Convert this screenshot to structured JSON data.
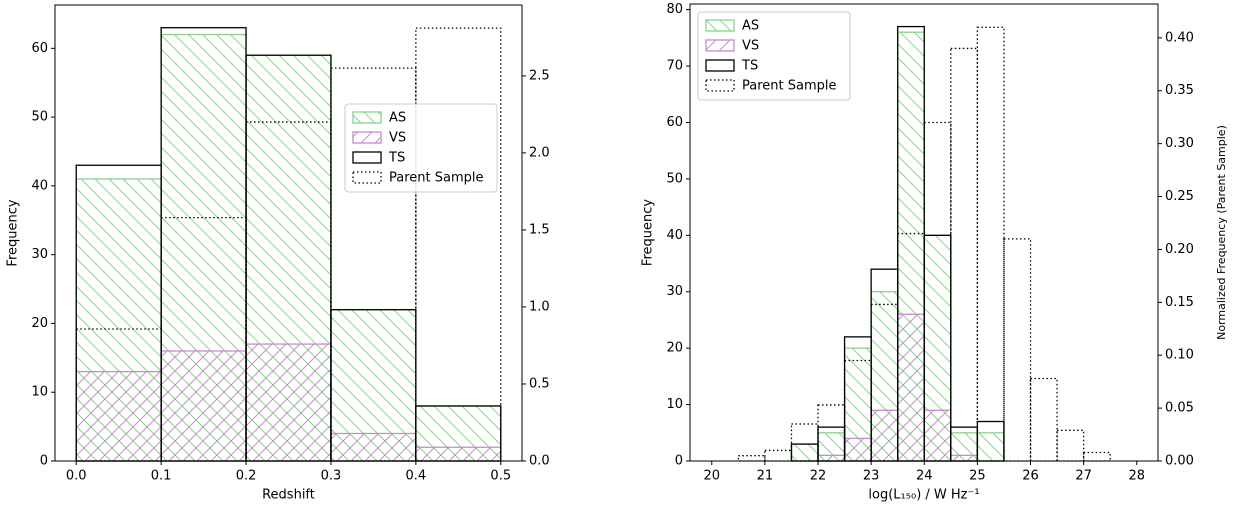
{
  "chart_data": [
    {
      "type": "histogram",
      "xlabel": "Redshift",
      "ylabel": "Frequency",
      "bins": [
        0.0,
        0.1,
        0.2,
        0.3,
        0.4,
        0.5
      ],
      "xlim": [
        -0.025,
        0.525
      ],
      "xticks": [
        {
          "value": 0.0,
          "label": "0.0"
        },
        {
          "value": 0.1,
          "label": "0.1"
        },
        {
          "value": 0.2,
          "label": "0.2"
        },
        {
          "value": 0.3,
          "label": "0.3"
        },
        {
          "value": 0.4,
          "label": "0.4"
        },
        {
          "value": 0.5,
          "label": "0.5"
        }
      ],
      "ylim": [
        0,
        66.3
      ],
      "yticks": [
        0,
        10,
        20,
        30,
        40,
        50,
        60
      ],
      "y2lim": [
        0,
        2.96
      ],
      "y2ticks": [
        {
          "value": 0.0,
          "label": "0.0"
        },
        {
          "value": 0.5,
          "label": "0.5"
        },
        {
          "value": 1.0,
          "label": "1.0"
        },
        {
          "value": 1.5,
          "label": "1.5"
        },
        {
          "value": 2.0,
          "label": "2.0"
        },
        {
          "value": 2.5,
          "label": "2.5"
        }
      ],
      "legend": "center right",
      "series": [
        {
          "name": "AS",
          "color": "#8fce8f",
          "hatch": "\\",
          "values": [
            41,
            62,
            59,
            22,
            8
          ]
        },
        {
          "name": "VS",
          "color": "#c98ad0",
          "hatch": "/",
          "values": [
            13,
            16,
            17,
            4,
            2
          ]
        },
        {
          "name": "TS",
          "color": "#000000",
          "values": [
            43,
            63,
            59,
            22,
            8
          ]
        },
        {
          "name": "Parent Sample",
          "color": "#000000",
          "linestyle": "dotted",
          "axis": "y2",
          "values": [
            0.857,
            1.58,
            2.2,
            2.55,
            2.81
          ]
        }
      ]
    },
    {
      "type": "histogram",
      "xlabel": "log(L₁₅₀) / W Hz⁻¹",
      "ylabel": "Frequency",
      "y2label": "Normalized Frequency (Parent Sample)",
      "bins": [
        20,
        20.5,
        21,
        21.5,
        22,
        22.5,
        23,
        23.5,
        24,
        24.5,
        25,
        25.5,
        26,
        26.5,
        27,
        27.5,
        28
      ],
      "xlim": [
        19.59,
        28.4
      ],
      "xticks": [
        20,
        21,
        22,
        23,
        24,
        25,
        26,
        27,
        28
      ],
      "ylim": [
        0,
        81
      ],
      "yticks": [
        0,
        10,
        20,
        30,
        40,
        50,
        60,
        70,
        80
      ],
      "y2lim": [
        0,
        0.432
      ],
      "y2ticks": [
        {
          "value": 0.0,
          "label": "0.00"
        },
        {
          "value": 0.05,
          "label": "0.05"
        },
        {
          "value": 0.1,
          "label": "0.10"
        },
        {
          "value": 0.15,
          "label": "0.15"
        },
        {
          "value": 0.2,
          "label": "0.20"
        },
        {
          "value": 0.25,
          "label": "0.25"
        },
        {
          "value": 0.3,
          "label": "0.30"
        },
        {
          "value": 0.35,
          "label": "0.35"
        },
        {
          "value": 0.4,
          "label": "0.40"
        }
      ],
      "legend": "upper left",
      "series": [
        {
          "name": "AS",
          "color": "#8fce8f",
          "hatch": "\\",
          "values": [
            0,
            0,
            0,
            3,
            5,
            20,
            30,
            76,
            40,
            5,
            5,
            0,
            0,
            0,
            0,
            0
          ]
        },
        {
          "name": "VS",
          "color": "#c98ad0",
          "hatch": "/",
          "values": [
            0,
            0,
            0,
            0,
            1,
            4,
            9,
            26,
            9,
            1,
            0,
            0,
            0,
            0,
            0,
            0
          ]
        },
        {
          "name": "TS",
          "color": "#000000",
          "values": [
            0,
            0,
            0,
            3,
            6,
            22,
            34,
            77,
            40,
            6,
            7,
            0,
            0,
            0,
            0,
            0
          ]
        },
        {
          "name": "Parent Sample",
          "color": "#000000",
          "linestyle": "dotted",
          "axis": "y2",
          "values": [
            0,
            0.005,
            0.01,
            0.035,
            0.053,
            0.095,
            0.148,
            0.215,
            0.32,
            0.39,
            0.41,
            0.21,
            0.078,
            0.029,
            0.008,
            0
          ]
        }
      ]
    }
  ]
}
